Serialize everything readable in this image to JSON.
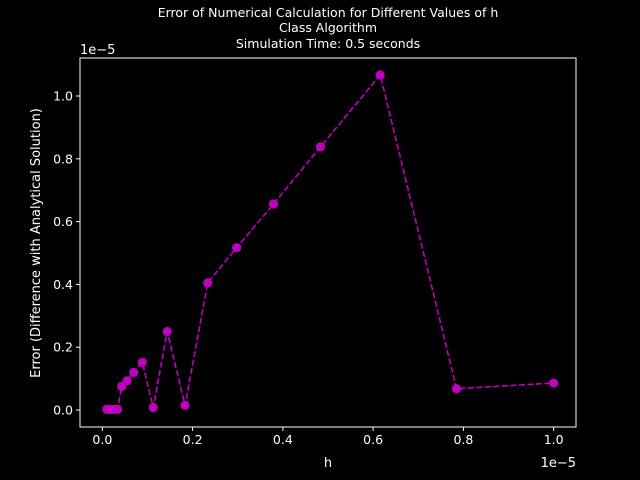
{
  "chart_data": {
    "type": "line",
    "title_lines": [
      "Error of Numerical Calculation for Different Values of h",
      "Class Algorithm",
      "Simulation Time: 0.5 seconds"
    ],
    "xlabel": "h",
    "ylabel": "Error (Difference with Analytical Solution)",
    "x_offset_label": "1e−5",
    "y_offset_label": "1e−5",
    "x_scale": 1e-05,
    "y_scale": 1e-05,
    "xlim": [
      -0.0495,
      1.0495
    ],
    "ylim": [
      -0.054,
      1.121
    ],
    "xticks": [
      0.0,
      0.2,
      0.4,
      0.6,
      0.8,
      1.0
    ],
    "xtick_labels": [
      "0.0",
      "0.2",
      "0.4",
      "0.6",
      "0.8",
      "1.0"
    ],
    "yticks": [
      0.0,
      0.2,
      0.4,
      0.6,
      0.8,
      1.0
    ],
    "ytick_labels": [
      "0.0",
      "0.2",
      "0.4",
      "0.6",
      "0.8",
      "1.0"
    ],
    "grid": false,
    "series": [
      {
        "color": "#bf00bf",
        "line_style": "dashed",
        "marker": "circle",
        "x": [
          0.01,
          0.0127,
          0.0162,
          0.0207,
          0.0264,
          0.0336,
          0.0428,
          0.0546,
          0.0695,
          0.0886,
          0.1129,
          0.1438,
          0.1833,
          0.2336,
          0.2976,
          0.3793,
          0.4833,
          0.6158,
          0.7848,
          1.0
        ],
        "y": [
          0.002,
          0.002,
          0.002,
          0.002,
          0.002,
          0.002,
          0.075,
          0.093,
          0.12,
          0.152,
          0.008,
          0.25,
          0.015,
          0.405,
          0.517,
          0.656,
          0.838,
          1.067,
          0.068,
          0.086
        ]
      }
    ]
  }
}
